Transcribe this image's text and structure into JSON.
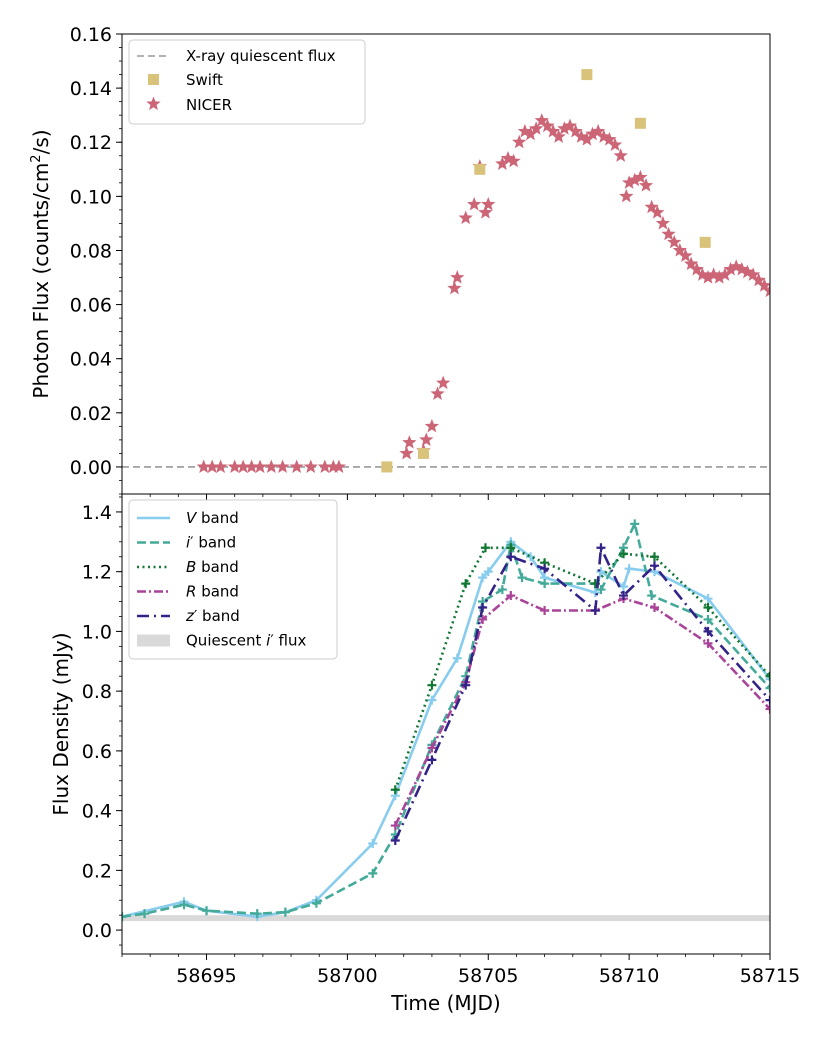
{
  "chart_data": [
    {
      "type": "scatter",
      "panel": "top",
      "xlabel": "",
      "ylabel": "Photon Flux (counts/cm²/s)",
      "ylabel_parts": {
        "pre": "Photon Flux (counts/cm",
        "sup": "2",
        "post": "/s)"
      },
      "xlim": [
        58692,
        58715
      ],
      "ylim": [
        -0.01,
        0.16
      ],
      "yticks": [
        0.0,
        0.02,
        0.04,
        0.06,
        0.08,
        0.1,
        0.12,
        0.14,
        0.16
      ],
      "ytick_labels": [
        "0.00",
        "0.02",
        "0.04",
        "0.06",
        "0.08",
        "0.10",
        "0.12",
        "0.14",
        "0.16"
      ],
      "legend_position": "upper-left",
      "baseline": {
        "name": "X-ray quiescent flux",
        "value": 0.0,
        "color": "#999999"
      },
      "series": [
        {
          "name": "Swift",
          "marker": "square",
          "color": "#d9c27a",
          "x": [
            58701.4,
            58702.7,
            58704.7,
            58708.5,
            58710.4,
            58712.7
          ],
          "y": [
            0.0,
            0.005,
            0.11,
            0.145,
            0.127,
            0.083
          ]
        },
        {
          "name": "NICER",
          "marker": "star",
          "color": "#cc6677",
          "x": [
            58694.9,
            58695.2,
            58695.5,
            58696.0,
            58696.3,
            58696.6,
            58696.9,
            58697.3,
            58697.7,
            58698.2,
            58698.7,
            58699.2,
            58699.5,
            58699.7,
            58702.1,
            58702.2,
            58702.7,
            58702.8,
            58703.0,
            58703.2,
            58703.4,
            58703.8,
            58703.9,
            58704.2,
            58704.5,
            58704.7,
            58704.9,
            58705.0,
            58705.5,
            58705.7,
            58705.9,
            58706.1,
            58706.3,
            58706.5,
            58706.7,
            58706.9,
            58707.1,
            58707.3,
            58707.5,
            58707.7,
            58707.9,
            58708.1,
            58708.3,
            58708.5,
            58708.7,
            58708.9,
            58709.1,
            58709.3,
            58709.5,
            58709.7,
            58709.9,
            58710.0,
            58710.2,
            58710.4,
            58710.6,
            58710.8,
            58711.0,
            58711.2,
            58711.4,
            58711.6,
            58711.8,
            58712.0,
            58712.2,
            58712.4,
            58712.6,
            58712.8,
            58713.0,
            58713.2,
            58713.4,
            58713.6,
            58713.8,
            58714.0,
            58714.2,
            58714.4,
            58714.6,
            58714.8,
            58715.0
          ],
          "y": [
            0.0,
            0.0,
            0.0,
            0.0,
            0.0,
            0.0,
            0.0,
            0.0,
            0.0,
            0.0,
            0.0,
            0.0,
            0.0,
            0.0,
            0.005,
            0.009,
            0.006,
            0.01,
            0.015,
            0.027,
            0.031,
            0.066,
            0.07,
            0.092,
            0.097,
            0.111,
            0.094,
            0.097,
            0.112,
            0.114,
            0.113,
            0.12,
            0.124,
            0.123,
            0.125,
            0.128,
            0.126,
            0.124,
            0.122,
            0.125,
            0.126,
            0.124,
            0.122,
            0.121,
            0.123,
            0.124,
            0.122,
            0.121,
            0.119,
            0.115,
            0.1,
            0.105,
            0.106,
            0.107,
            0.104,
            0.096,
            0.094,
            0.09,
            0.086,
            0.083,
            0.08,
            0.078,
            0.075,
            0.073,
            0.071,
            0.07,
            0.071,
            0.07,
            0.071,
            0.073,
            0.074,
            0.073,
            0.072,
            0.071,
            0.069,
            0.067,
            0.065
          ]
        }
      ]
    },
    {
      "type": "line",
      "panel": "bottom",
      "xlabel": "Time (MJD)",
      "ylabel": "Flux Density (mJy)",
      "xlim": [
        58692,
        58715
      ],
      "ylim": [
        -0.08,
        1.46
      ],
      "xticks": [
        58695,
        58700,
        58705,
        58710,
        58715
      ],
      "xtick_labels": [
        "58695",
        "58700",
        "58705",
        "58710",
        "58715"
      ],
      "yticks": [
        0.0,
        0.2,
        0.4,
        0.6,
        0.8,
        1.0,
        1.2,
        1.4
      ],
      "ytick_labels": [
        "0.0",
        "0.2",
        "0.4",
        "0.6",
        "0.8",
        "1.0",
        "1.2",
        "1.4"
      ],
      "legend_position": "upper-left",
      "quiescent_band": {
        "name": "Quiescent i′ flux",
        "name_parts": {
          "pre": "Quiescent ",
          "it": "i",
          "post": "′ flux"
        },
        "range": [
          0.03,
          0.05
        ],
        "color": "#d9d9d9"
      },
      "series": [
        {
          "name": "V band",
          "label_band": "V",
          "label_rest": " band",
          "color": "#88ccee",
          "dash": "solid",
          "x": [
            58692.0,
            58694.2,
            58695.0,
            58696.8,
            58697.8,
            58698.9,
            58700.9,
            58701.7,
            58703.0,
            58703.9,
            58704.8,
            58705.0,
            58705.8,
            58706.5,
            58707.0,
            58708.8,
            58709.0,
            58709.8,
            58710.0,
            58710.9,
            58712.8,
            58715.0
          ],
          "y": [
            0.045,
            0.095,
            0.065,
            0.045,
            0.06,
            0.1,
            0.29,
            0.45,
            0.77,
            0.91,
            1.18,
            1.2,
            1.3,
            1.25,
            1.18,
            1.13,
            1.2,
            1.15,
            1.21,
            1.2,
            1.11,
            0.84
          ]
        },
        {
          "name": "i′ band",
          "label_band": "i",
          "label_rest": "′ band",
          "color": "#44aa99",
          "dash": "dashed",
          "x": [
            58692.0,
            58692.8,
            58694.2,
            58695.0,
            58696.8,
            58697.8,
            58698.9,
            58700.9,
            58701.7,
            58703.0,
            58704.2,
            58704.8,
            58705.5,
            58705.8,
            58706.2,
            58707.0,
            58708.8,
            58709.0,
            58709.8,
            58710.2,
            58710.8,
            58712.8,
            58715.0
          ],
          "y": [
            0.045,
            0.055,
            0.085,
            0.065,
            0.055,
            0.06,
            0.09,
            0.19,
            0.32,
            0.62,
            0.85,
            1.1,
            1.14,
            1.29,
            1.18,
            1.16,
            1.16,
            1.14,
            1.28,
            1.36,
            1.12,
            1.04,
            0.81
          ]
        },
        {
          "name": "B band",
          "label_band": "B",
          "label_rest": " band",
          "color": "#117733",
          "dash": "dotted",
          "x": [
            58701.7,
            58703.0,
            58704.2,
            58704.9,
            58705.8,
            58707.0,
            58708.8,
            58709.8,
            58710.9,
            58712.8,
            58715.0
          ],
          "y": [
            0.47,
            0.82,
            1.16,
            1.28,
            1.28,
            1.23,
            1.16,
            1.26,
            1.25,
            1.08,
            0.85
          ]
        },
        {
          "name": "R band",
          "label_band": "R",
          "label_rest": " band",
          "color": "#aa4499",
          "dash": "dashdot",
          "x": [
            58701.7,
            58703.0,
            58704.2,
            58704.8,
            58705.8,
            58707.0,
            58708.8,
            58709.8,
            58710.9,
            58712.8,
            58715.0
          ],
          "y": [
            0.35,
            0.61,
            0.83,
            1.04,
            1.12,
            1.07,
            1.07,
            1.11,
            1.08,
            0.96,
            0.74
          ]
        },
        {
          "name": "z′ band",
          "label_band": "z",
          "label_rest": "′ band",
          "color": "#332288",
          "dash": "loosedashdot",
          "x": [
            58701.7,
            58703.0,
            58704.2,
            58704.8,
            58705.8,
            58707.0,
            58708.8,
            58709.0,
            58709.8,
            58710.9,
            58712.8,
            58715.0
          ],
          "y": [
            0.3,
            0.57,
            0.82,
            1.08,
            1.25,
            1.21,
            1.07,
            1.28,
            1.12,
            1.22,
            1.0,
            0.77
          ]
        }
      ]
    }
  ]
}
